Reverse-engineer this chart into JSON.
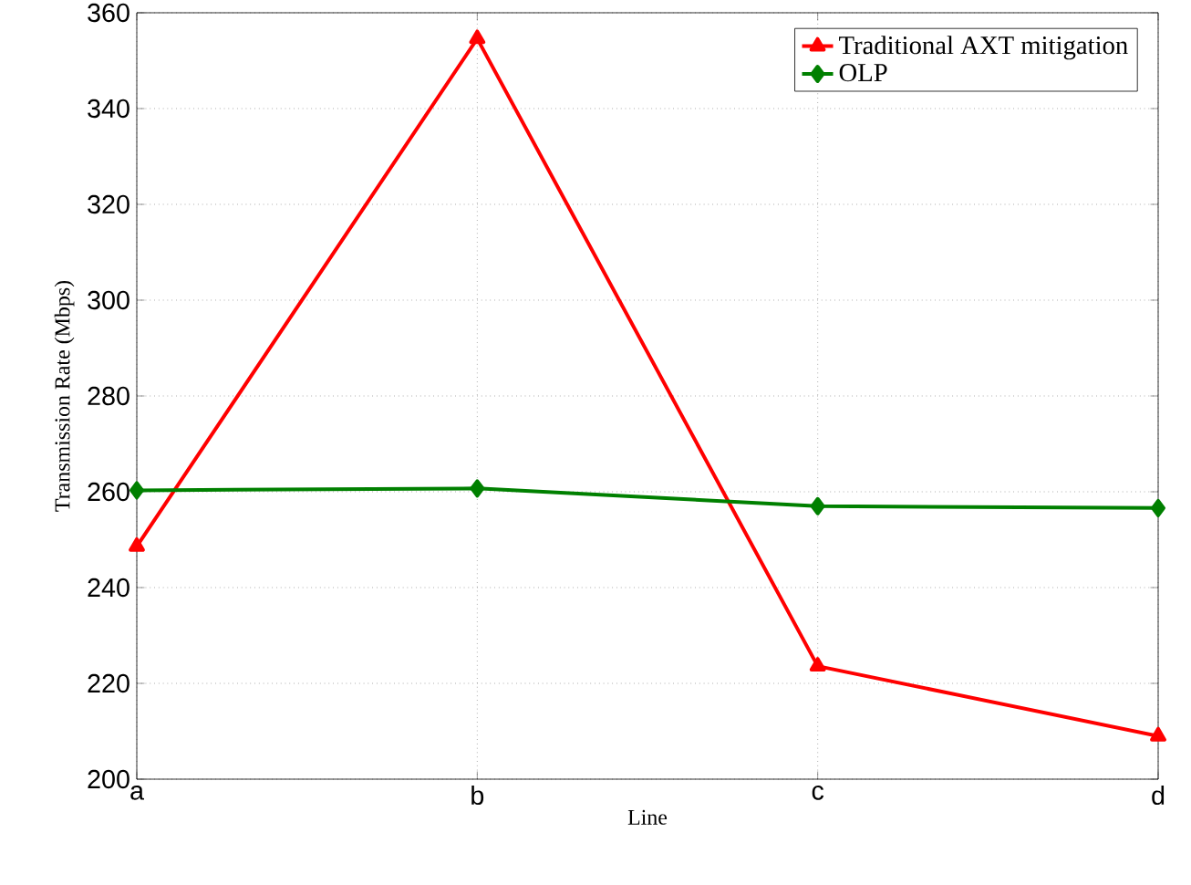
{
  "chart_data": {
    "type": "line",
    "xlabel": "Line",
    "ylabel": "Transmission Rate (Mbps)",
    "categories": [
      "a",
      "b",
      "c",
      "d"
    ],
    "series": [
      {
        "name": "Traditional AXT mitigation",
        "color": "#ff0000",
        "marker": "triangle",
        "values": [
          248.6,
          354.6,
          223.6,
          209
        ]
      },
      {
        "name": "OLP",
        "color": "#008000",
        "marker": "diamond",
        "values": [
          260.3,
          260.7,
          257,
          256.6
        ]
      }
    ],
    "ylim": [
      200,
      360
    ],
    "yticks": [
      200,
      220,
      240,
      260,
      280,
      300,
      320,
      340,
      360
    ],
    "grid": true,
    "legend": "top right",
    "line_style": "solid"
  }
}
